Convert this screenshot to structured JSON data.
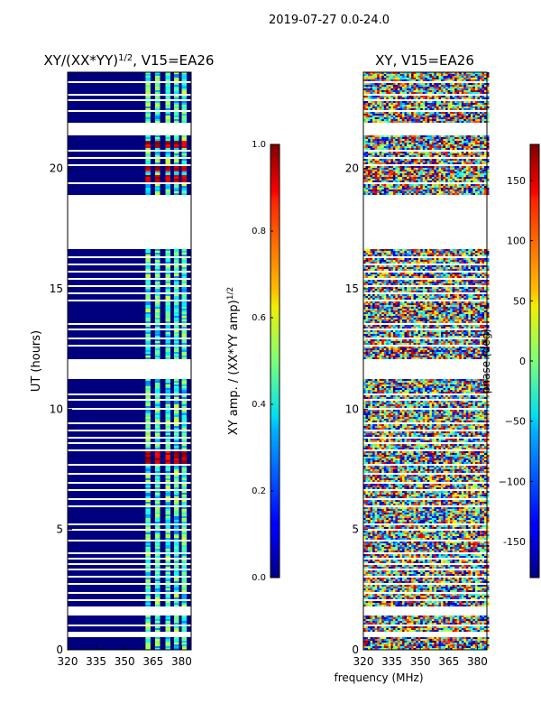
{
  "figure_title": "2019-07-27 0.0-24.0",
  "chart_data": [
    {
      "type": "heatmap",
      "title_main": "XY/(XX*YY)",
      "title_exp": "1/2",
      "title_rest": ", V15=EA26",
      "xlabel": "frequency (MHz)",
      "ylabel": "UT (hours)",
      "xlim": [
        320,
        385
      ],
      "ylim": [
        0,
        24
      ],
      "xticks": [
        "320",
        "335",
        "350",
        "365",
        "380"
      ],
      "yticks": [
        "0",
        "5",
        "10",
        "15",
        "20"
      ],
      "colorbar": {
        "label_main": "XY amp. / (XX*YY amp)",
        "label_exp": "1/2",
        "range": [
          0.0,
          1.0
        ],
        "ticks": [
          "0.0",
          "0.2",
          "0.4",
          "0.6",
          "0.8",
          "1.0"
        ],
        "colormap": "jet"
      },
      "strong_rows_hours": [
        7.9,
        8.1,
        19.6,
        20.0,
        21.0
      ]
    },
    {
      "type": "heatmap",
      "title": "XY, V15=EA26",
      "xlim": [
        320,
        385
      ],
      "ylim": [
        0,
        24
      ],
      "xticks": [
        "320",
        "335",
        "350",
        "365",
        "380"
      ],
      "yticks": [
        "0",
        "5",
        "10",
        "15",
        "20"
      ],
      "colorbar": {
        "label": "phase (deg)",
        "range": [
          -180,
          180
        ],
        "ticks": [
          "-150",
          "−100",
          "−50",
          "0",
          "50",
          "100",
          "150"
        ],
        "colormap": "jet"
      }
    }
  ],
  "gaps_hours": [
    [
      0.5,
      0.75
    ],
    [
      1.0,
      1.05
    ],
    [
      1.45,
      1.8
    ],
    [
      2.05,
      2.1
    ],
    [
      2.35,
      2.4
    ],
    [
      2.7,
      2.78
    ],
    [
      3.0,
      3.04
    ],
    [
      3.3,
      3.34
    ],
    [
      3.55,
      3.6
    ],
    [
      3.75,
      3.8
    ],
    [
      4.0,
      4.05
    ],
    [
      4.5,
      4.55
    ],
    [
      4.95,
      5.0
    ],
    [
      5.2,
      5.26
    ],
    [
      5.45,
      5.5
    ],
    [
      5.95,
      6.0
    ],
    [
      6.25,
      6.3
    ],
    [
      6.6,
      6.65
    ],
    [
      6.9,
      6.95
    ],
    [
      7.3,
      7.35
    ],
    [
      7.65,
      7.7
    ],
    [
      8.25,
      8.3
    ],
    [
      8.55,
      8.6
    ],
    [
      8.8,
      8.84
    ],
    [
      9.1,
      9.14
    ],
    [
      9.4,
      9.44
    ],
    [
      9.65,
      9.7
    ],
    [
      10.0,
      10.04
    ],
    [
      10.35,
      10.4
    ],
    [
      10.6,
      10.65
    ],
    [
      11.0,
      11.05
    ],
    [
      11.25,
      11.3
    ],
    [
      11.35,
      12.05
    ],
    [
      12.35,
      12.4
    ],
    [
      12.6,
      12.65
    ],
    [
      12.9,
      12.95
    ],
    [
      13.3,
      13.35
    ],
    [
      13.5,
      13.55
    ],
    [
      13.85,
      13.9
    ],
    [
      14.15,
      14.2
    ],
    [
      14.5,
      14.55
    ],
    [
      14.8,
      14.85
    ],
    [
      15.1,
      15.15
    ],
    [
      15.4,
      15.45
    ],
    [
      15.7,
      15.75
    ],
    [
      16.0,
      16.05
    ],
    [
      16.3,
      16.35
    ],
    [
      16.65,
      18.9
    ],
    [
      19.1,
      19.15
    ],
    [
      19.35,
      19.4
    ],
    [
      19.85,
      19.9
    ],
    [
      20.1,
      20.15
    ],
    [
      20.4,
      20.45
    ],
    [
      20.7,
      20.75
    ],
    [
      21.4,
      21.9
    ],
    [
      22.35,
      22.4
    ],
    [
      22.55,
      22.6
    ],
    [
      22.8,
      22.85
    ],
    [
      23.05,
      23.1
    ],
    [
      23.3,
      23.35
    ],
    [
      23.55,
      23.6
    ]
  ]
}
